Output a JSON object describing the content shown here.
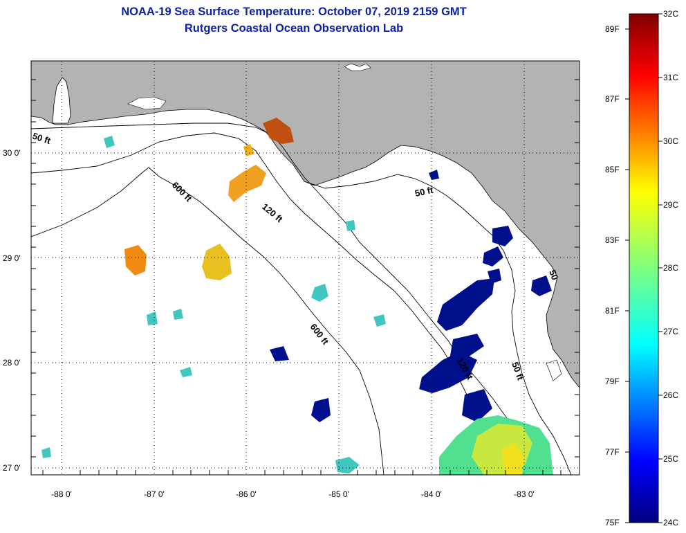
{
  "title": {
    "line1": "NOAA-19 Sea Surface Temperature:  October 07, 2019 2159 GMT",
    "line2": "Rutgers Coastal Ocean Observation Lab"
  },
  "map": {
    "lat_labels": [
      "30 0'",
      "29 0'",
      "28 0'",
      "27 0'"
    ],
    "lon_labels": [
      "-88 0'",
      "-87 0'",
      "-86 0'",
      "-85 0'",
      "-84 0'",
      "-83 0'"
    ],
    "contour_labels": {
      "c50_west": "50 ft",
      "c600_north": "600 ft",
      "c120_north": "120 ft",
      "c50_east": "50 ft",
      "c600_south": "600 ft",
      "c120_south": "120 ft",
      "c50_south": "50 ft",
      "c50_coast": "50"
    },
    "colors": {
      "land": "#b3b3b3",
      "water": "#ffffff",
      "cold": "#00108c",
      "warm": "#f08a10"
    }
  },
  "colorbar": {
    "celsius_labels": [
      "32C",
      "31C",
      "30C",
      "29C",
      "28C",
      "27C",
      "26C",
      "25C",
      "24C"
    ],
    "fahrenheit_labels": [
      "89F",
      "87F",
      "85F",
      "83F",
      "81F",
      "79F",
      "77F",
      "75F"
    ],
    "range_c": [
      24,
      32
    ],
    "colormap": "jet"
  }
}
